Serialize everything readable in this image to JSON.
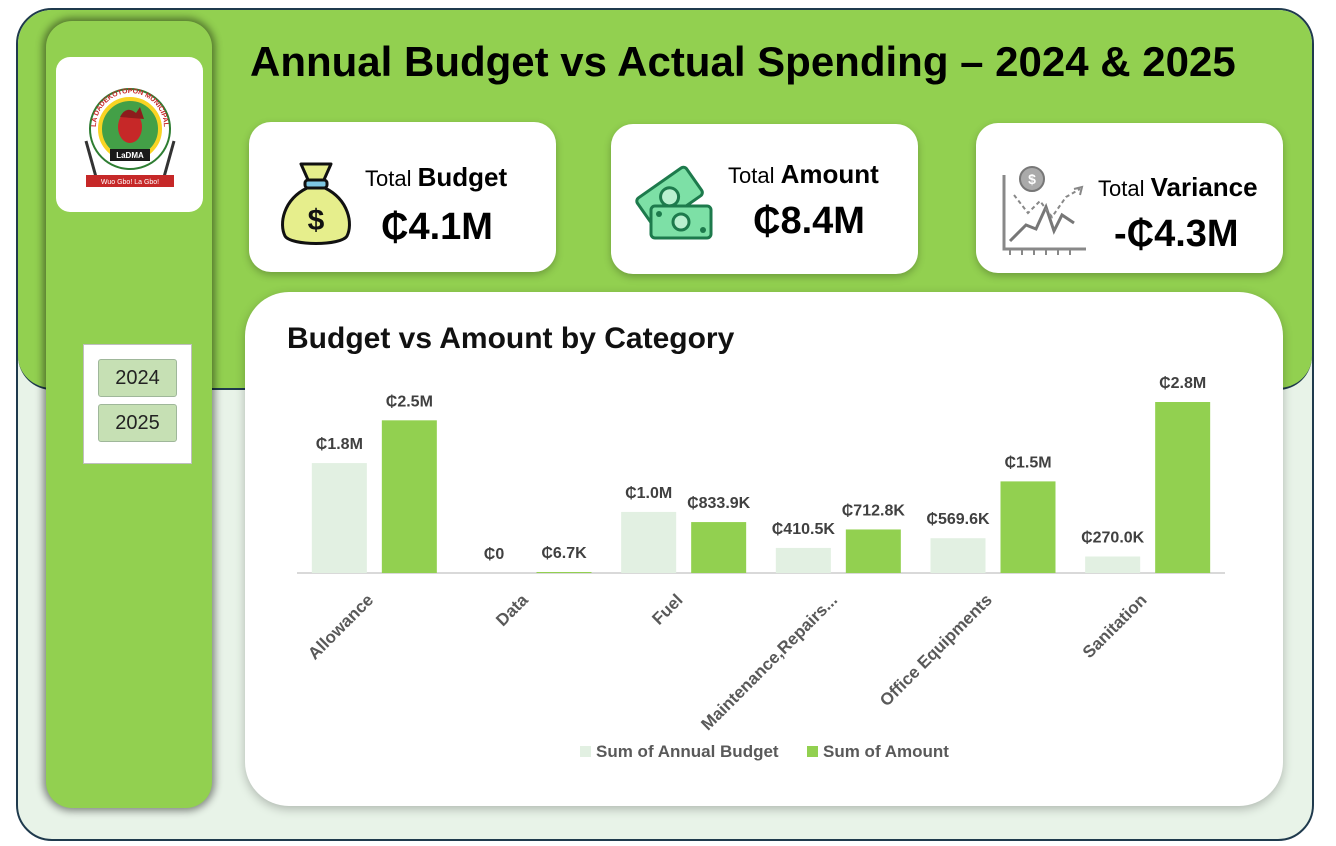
{
  "page": {
    "title": "Annual Budget vs Actual Spending – 2024 & 2025"
  },
  "logo": {
    "arc_text": "LA DADEKOTOPON MUNICIPAL ASSEMBLY",
    "banner_text": "LaDMA",
    "motto": "Wuo Gbo! La Gbo!"
  },
  "slicer": {
    "options": [
      "2024",
      "2025"
    ]
  },
  "kpis": [
    {
      "label_prefix": "Total",
      "label_bold": "Budget",
      "value": "₵4.1M",
      "icon": "money-bag-icon"
    },
    {
      "label_prefix": "Total",
      "label_bold": "Amount",
      "value": "₵8.4M",
      "icon": "banknotes-icon"
    },
    {
      "label_prefix": "Total",
      "label_bold": "Variance",
      "value": "-₵4.3M",
      "icon": "trend-chart-icon"
    }
  ],
  "chart_data": {
    "type": "bar",
    "title": "Budget vs Amount by Category",
    "categories": [
      "Allowance",
      "Data",
      "Fuel",
      "Maintenance,Repairs...",
      "Office Equipments",
      "Sanitation"
    ],
    "series": [
      {
        "name": "Sum of Annual Budget",
        "values": [
          1800000,
          0,
          1000000,
          410500,
          569600,
          270000
        ],
        "labels": [
          "₵1.8M",
          "₵0",
          "₵1.0M",
          "₵410.5K",
          "₵569.6K",
          "₵270.0K"
        ]
      },
      {
        "name": "Sum of Amount",
        "values": [
          2500000,
          6700,
          833900,
          712800,
          1500000,
          2800000
        ],
        "labels": [
          "₵2.5M",
          "₵6.7K",
          "₵833.9K",
          "₵712.8K",
          "₵1.5M",
          "₵2.8M"
        ]
      }
    ],
    "colors": [
      "#e2f0e2",
      "#92d050"
    ],
    "legend_position": "bottom",
    "grid": false
  }
}
